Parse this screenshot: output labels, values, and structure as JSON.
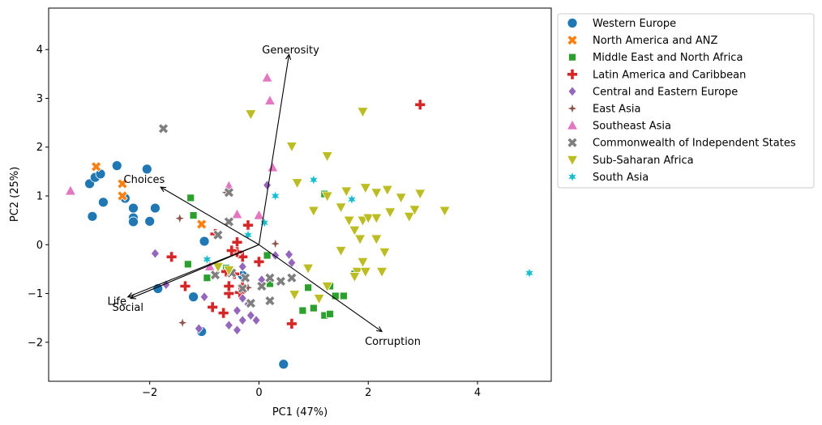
{
  "chart_data": {
    "type": "scatter",
    "xlabel": "PC1 (47%)",
    "ylabel": "PC2 (25%)",
    "xlim": [
      -3.85,
      5.35
    ],
    "ylim": [
      -2.8,
      4.85
    ],
    "xticks": [
      -2,
      0,
      2,
      4
    ],
    "yticks": [
      -2,
      -1,
      0,
      1,
      2,
      3,
      4
    ],
    "grid": false,
    "legend_position": "outside-right",
    "loadings": [
      {
        "label": "Generosity",
        "x": 0.55,
        "y": 3.9,
        "label_x": 0.58,
        "label_y": 4.0
      },
      {
        "label": "Choices",
        "x": -1.8,
        "y": 1.18,
        "label_x": -2.1,
        "label_y": 1.35
      },
      {
        "label": "Life",
        "x": -2.4,
        "y": -1.07,
        "label_x": -2.6,
        "label_y": -1.15
      },
      {
        "label": "Social",
        "x": -2.35,
        "y": -1.1,
        "label_x": -2.4,
        "label_y": -1.27
      },
      {
        "label": "Corruption",
        "x": 2.25,
        "y": -1.78,
        "label_x": 2.45,
        "label_y": -1.97
      }
    ],
    "series": [
      {
        "name": "Western Europe",
        "color": "#1f77b4",
        "marker": "circle",
        "points": [
          [
            -3.1,
            1.25
          ],
          [
            -3.0,
            1.38
          ],
          [
            -2.9,
            1.45
          ],
          [
            -2.6,
            1.62
          ],
          [
            -2.05,
            1.55
          ],
          [
            -2.45,
            0.95
          ],
          [
            -2.3,
            0.75
          ],
          [
            -2.3,
            0.55
          ],
          [
            -2.3,
            0.47
          ],
          [
            -1.9,
            0.75
          ],
          [
            -2.0,
            0.48
          ],
          [
            -2.85,
            0.87
          ],
          [
            -3.05,
            0.58
          ],
          [
            -1.0,
            0.07
          ],
          [
            -1.85,
            -0.9
          ],
          [
            -1.2,
            -1.07
          ],
          [
            -1.05,
            -1.78
          ],
          [
            -0.3,
            -0.63
          ],
          [
            0.45,
            -2.45
          ]
        ]
      },
      {
        "name": "North America and ANZ",
        "color": "#ff7f0e",
        "marker": "x",
        "points": [
          [
            -2.98,
            1.6
          ],
          [
            -2.5,
            1.25
          ],
          [
            -2.5,
            1.0
          ],
          [
            -1.05,
            0.42
          ]
        ]
      },
      {
        "name": "Middle East and North Africa",
        "color": "#2ca02c",
        "marker": "square",
        "points": [
          [
            -1.25,
            0.96
          ],
          [
            -1.2,
            0.6
          ],
          [
            -1.3,
            -0.4
          ],
          [
            -0.6,
            -0.48
          ],
          [
            -0.95,
            -0.68
          ],
          [
            0.15,
            -0.22
          ],
          [
            0.2,
            -0.8
          ],
          [
            0.9,
            -0.88
          ],
          [
            1.2,
            1.04
          ],
          [
            1.3,
            -0.85
          ],
          [
            0.8,
            -1.35
          ],
          [
            1.0,
            -1.3
          ],
          [
            1.2,
            -1.45
          ],
          [
            1.3,
            -1.42
          ],
          [
            1.4,
            -1.05
          ],
          [
            1.55,
            -1.05
          ],
          [
            1.75,
            -0.6
          ]
        ]
      },
      {
        "name": "Latin America and Caribbean",
        "color": "#d62728",
        "marker": "plus",
        "points": [
          [
            2.95,
            2.87
          ],
          [
            -0.8,
            0.22
          ],
          [
            -0.4,
            0.05
          ],
          [
            -0.3,
            -0.25
          ],
          [
            -0.4,
            -0.15
          ],
          [
            -0.2,
            0.4
          ],
          [
            -1.6,
            -0.25
          ],
          [
            0.0,
            -0.35
          ],
          [
            -0.5,
            -0.12
          ],
          [
            -0.6,
            -0.55
          ],
          [
            -0.45,
            -0.6
          ],
          [
            -0.3,
            -0.85
          ],
          [
            -0.35,
            -0.98
          ],
          [
            -0.55,
            -1.0
          ],
          [
            -0.55,
            -0.85
          ],
          [
            -1.35,
            -0.85
          ],
          [
            -0.85,
            -1.28
          ],
          [
            -0.65,
            -1.4
          ],
          [
            0.6,
            -1.62
          ]
        ]
      },
      {
        "name": "Central and Eastern Europe",
        "color": "#9467bd",
        "marker": "diamond",
        "points": [
          [
            0.15,
            1.22
          ],
          [
            -1.9,
            -0.18
          ],
          [
            -1.7,
            -0.82
          ],
          [
            -0.3,
            -0.45
          ],
          [
            0.3,
            -0.22
          ],
          [
            0.55,
            -0.2
          ],
          [
            0.6,
            -0.37
          ],
          [
            0.05,
            -0.72
          ],
          [
            -1.0,
            -1.07
          ],
          [
            -0.3,
            -1.1
          ],
          [
            -0.2,
            -1.22
          ],
          [
            -0.4,
            -1.35
          ],
          [
            -0.15,
            -1.45
          ],
          [
            -0.3,
            -1.55
          ],
          [
            -0.05,
            -1.55
          ],
          [
            -0.55,
            -1.65
          ],
          [
            -0.4,
            -1.75
          ],
          [
            -1.1,
            -1.72
          ]
        ]
      },
      {
        "name": "East Asia",
        "color": "#8c564b",
        "marker": "star4",
        "points": [
          [
            -1.45,
            0.54
          ],
          [
            -0.6,
            1.07
          ],
          [
            0.3,
            0.02
          ],
          [
            -0.2,
            -0.88
          ],
          [
            -1.4,
            -1.6
          ]
        ]
      },
      {
        "name": "Southeast Asia",
        "color": "#e377c2",
        "marker": "triangle-up",
        "points": [
          [
            -3.45,
            1.1
          ],
          [
            -0.55,
            1.2
          ],
          [
            -0.4,
            0.62
          ],
          [
            0.0,
            0.6
          ],
          [
            0.15,
            3.42
          ],
          [
            0.2,
            2.95
          ],
          [
            0.25,
            1.58
          ],
          [
            -0.9,
            -0.45
          ]
        ]
      },
      {
        "name": "Commonwealth of Independent States",
        "color": "#7f7f7f",
        "marker": "x",
        "points": [
          [
            -1.75,
            2.38
          ],
          [
            -0.55,
            1.07
          ],
          [
            -0.75,
            0.2
          ],
          [
            -0.55,
            0.47
          ],
          [
            -0.5,
            -0.58
          ],
          [
            -0.8,
            -0.62
          ],
          [
            -0.3,
            -0.9
          ],
          [
            0.05,
            -0.85
          ],
          [
            -0.25,
            -0.68
          ],
          [
            0.2,
            -0.68
          ],
          [
            0.4,
            -0.75
          ],
          [
            0.6,
            -0.68
          ],
          [
            0.2,
            -1.15
          ],
          [
            -0.15,
            -1.2
          ]
        ]
      },
      {
        "name": "Sub-Saharan Africa",
        "color": "#bcbd22",
        "marker": "triangle-down",
        "points": [
          [
            -0.15,
            2.68
          ],
          [
            0.6,
            2.02
          ],
          [
            1.25,
            1.82
          ],
          [
            1.9,
            2.73
          ],
          [
            0.7,
            1.27
          ],
          [
            1.25,
            1.0
          ],
          [
            1.6,
            1.1
          ],
          [
            1.95,
            1.17
          ],
          [
            2.15,
            1.07
          ],
          [
            2.35,
            1.13
          ],
          [
            2.6,
            0.97
          ],
          [
            2.95,
            1.05
          ],
          [
            1.0,
            0.7
          ],
          [
            1.5,
            0.77
          ],
          [
            1.65,
            0.5
          ],
          [
            1.9,
            0.5
          ],
          [
            2.0,
            0.55
          ],
          [
            2.15,
            0.55
          ],
          [
            2.4,
            0.67
          ],
          [
            2.75,
            0.58
          ],
          [
            2.85,
            0.72
          ],
          [
            3.4,
            0.7
          ],
          [
            1.75,
            0.3
          ],
          [
            1.85,
            0.12
          ],
          [
            2.15,
            0.12
          ],
          [
            2.3,
            -0.15
          ],
          [
            1.5,
            -0.12
          ],
          [
            1.9,
            -0.35
          ],
          [
            1.8,
            -0.55
          ],
          [
            1.95,
            -0.55
          ],
          [
            2.25,
            -0.55
          ],
          [
            0.9,
            -0.48
          ],
          [
            1.25,
            -0.85
          ],
          [
            1.75,
            -0.65
          ],
          [
            0.65,
            -1.02
          ],
          [
            1.1,
            -1.1
          ],
          [
            -0.95,
            -0.32
          ],
          [
            -0.75,
            -0.45
          ],
          [
            -0.55,
            -0.52
          ]
        ]
      },
      {
        "name": "South Asia",
        "color": "#17becf",
        "marker": "star6",
        "points": [
          [
            1.0,
            1.33
          ],
          [
            0.3,
            1.0
          ],
          [
            1.7,
            0.93
          ],
          [
            0.1,
            0.45
          ],
          [
            -0.2,
            0.2
          ],
          [
            -0.95,
            -0.3
          ],
          [
            4.95,
            -0.58
          ]
        ]
      }
    ]
  }
}
